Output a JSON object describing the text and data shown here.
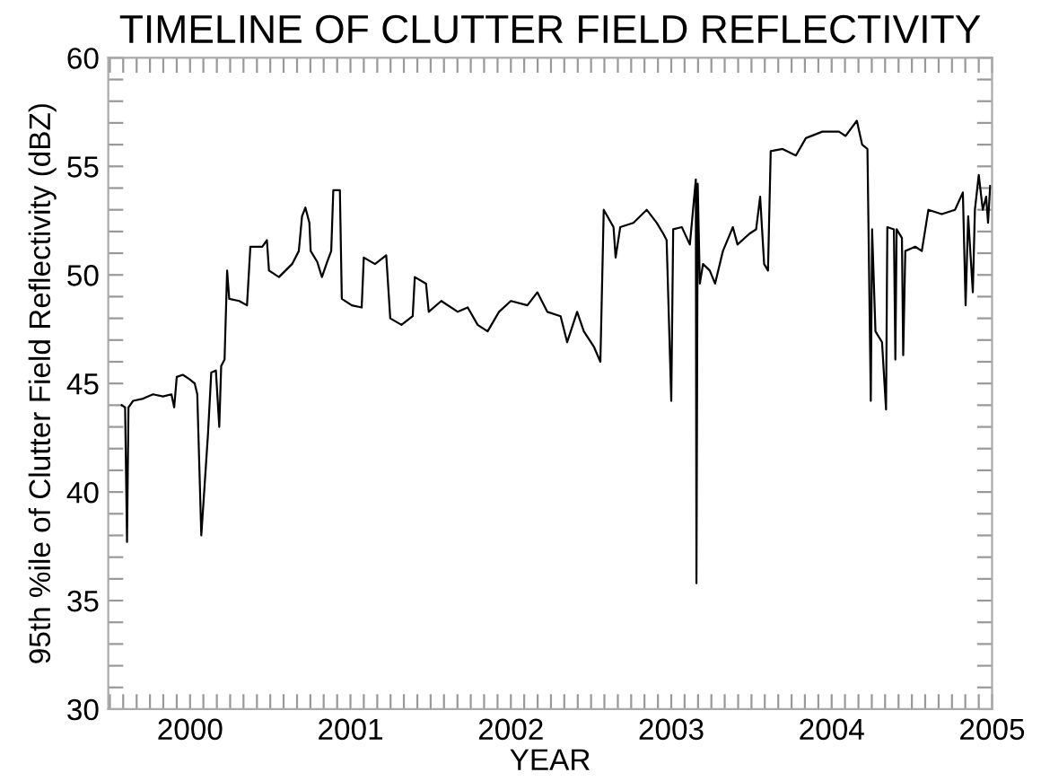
{
  "chart_data": {
    "type": "line",
    "title": "TIMELINE OF CLUTTER FIELD REFLECTIVITY",
    "xlabel": "YEAR",
    "ylabel": "95th %ile of Clutter Field Reflectivity (dBZ)",
    "xlim": [
      1999.49,
      2005
    ],
    "ylim": [
      30,
      60
    ],
    "xticks": [
      {
        "value": 1999.5,
        "label": null
      },
      {
        "value": 1999.583,
        "label": null
      },
      {
        "value": 1999.667,
        "label": null
      },
      {
        "value": 1999.75,
        "label": null
      },
      {
        "value": 1999.833,
        "label": null
      },
      {
        "value": 1999.917,
        "label": null
      },
      {
        "value": 2000,
        "label": "2000"
      },
      {
        "value": 2000.083,
        "label": null
      },
      {
        "value": 2000.167,
        "label": null
      },
      {
        "value": 2000.25,
        "label": null
      },
      {
        "value": 2000.333,
        "label": null
      },
      {
        "value": 2000.417,
        "label": null
      },
      {
        "value": 2000.5,
        "label": null
      },
      {
        "value": 2000.583,
        "label": null
      },
      {
        "value": 2000.667,
        "label": null
      },
      {
        "value": 2000.75,
        "label": null
      },
      {
        "value": 2000.833,
        "label": null
      },
      {
        "value": 2000.917,
        "label": null
      },
      {
        "value": 2001,
        "label": "2001"
      },
      {
        "value": 2001.083,
        "label": null
      },
      {
        "value": 2001.167,
        "label": null
      },
      {
        "value": 2001.25,
        "label": null
      },
      {
        "value": 2001.333,
        "label": null
      },
      {
        "value": 2001.417,
        "label": null
      },
      {
        "value": 2001.5,
        "label": null
      },
      {
        "value": 2001.583,
        "label": null
      },
      {
        "value": 2001.667,
        "label": null
      },
      {
        "value": 2001.75,
        "label": null
      },
      {
        "value": 2001.833,
        "label": null
      },
      {
        "value": 2001.917,
        "label": null
      },
      {
        "value": 2002,
        "label": "2002"
      },
      {
        "value": 2002.083,
        "label": null
      },
      {
        "value": 2002.167,
        "label": null
      },
      {
        "value": 2002.25,
        "label": null
      },
      {
        "value": 2002.333,
        "label": null
      },
      {
        "value": 2002.417,
        "label": null
      },
      {
        "value": 2002.5,
        "label": null
      },
      {
        "value": 2002.583,
        "label": null
      },
      {
        "value": 2002.667,
        "label": null
      },
      {
        "value": 2002.75,
        "label": null
      },
      {
        "value": 2002.833,
        "label": null
      },
      {
        "value": 2002.917,
        "label": null
      },
      {
        "value": 2003,
        "label": "2003"
      },
      {
        "value": 2003.083,
        "label": null
      },
      {
        "value": 2003.167,
        "label": null
      },
      {
        "value": 2003.25,
        "label": null
      },
      {
        "value": 2003.333,
        "label": null
      },
      {
        "value": 2003.417,
        "label": null
      },
      {
        "value": 2003.5,
        "label": null
      },
      {
        "value": 2003.583,
        "label": null
      },
      {
        "value": 2003.667,
        "label": null
      },
      {
        "value": 2003.75,
        "label": null
      },
      {
        "value": 2003.833,
        "label": null
      },
      {
        "value": 2003.917,
        "label": null
      },
      {
        "value": 2004,
        "label": "2004"
      },
      {
        "value": 2004.083,
        "label": null
      },
      {
        "value": 2004.167,
        "label": null
      },
      {
        "value": 2004.25,
        "label": null
      },
      {
        "value": 2004.333,
        "label": null
      },
      {
        "value": 2004.417,
        "label": null
      },
      {
        "value": 2004.5,
        "label": null
      },
      {
        "value": 2004.583,
        "label": null
      },
      {
        "value": 2004.667,
        "label": null
      },
      {
        "value": 2004.75,
        "label": null
      },
      {
        "value": 2004.833,
        "label": null
      },
      {
        "value": 2004.917,
        "label": null
      },
      {
        "value": 2005,
        "label": "2005"
      }
    ],
    "yticks": [
      30,
      {
        "value": 31,
        "label": null
      },
      {
        "value": 32,
        "label": null
      },
      {
        "value": 33,
        "label": null
      },
      {
        "value": 34,
        "label": null
      },
      35,
      {
        "value": 36,
        "label": null
      },
      {
        "value": 37,
        "label": null
      },
      {
        "value": 38,
        "label": null
      },
      {
        "value": 39,
        "label": null
      },
      40,
      {
        "value": 41,
        "label": null
      },
      {
        "value": 42,
        "label": null
      },
      {
        "value": 43,
        "label": null
      },
      {
        "value": 44,
        "label": null
      },
      45,
      {
        "value": 46,
        "label": null
      },
      {
        "value": 47,
        "label": null
      },
      {
        "value": 48,
        "label": null
      },
      {
        "value": 49,
        "label": null
      },
      50,
      {
        "value": 51,
        "label": null
      },
      {
        "value": 52,
        "label": null
      },
      {
        "value": 53,
        "label": null
      },
      {
        "value": 54,
        "label": null
      },
      55,
      {
        "value": 56,
        "label": null
      },
      {
        "value": 57,
        "label": null
      },
      {
        "value": 58,
        "label": null
      },
      {
        "value": 59,
        "label": null
      },
      60
    ],
    "grid": false,
    "legend": false,
    "marker": "none",
    "line_style": "solid",
    "series": [
      {
        "color": "#000000",
        "x": [
          1999.574,
          1999.595,
          1999.607,
          1999.616,
          1999.645,
          1999.707,
          1999.769,
          1999.831,
          1999.884,
          1999.901,
          1999.917,
          1999.955,
          1999.996,
          2000.029,
          2000.045,
          2000.07,
          2000.112,
          2000.132,
          2000.161,
          2000.182,
          2000.194,
          2000.215,
          2000.231,
          2000.244,
          2000.306,
          2000.355,
          2000.376,
          2000.45,
          2000.479,
          2000.492,
          2000.554,
          2000.636,
          2000.678,
          2000.698,
          2000.719,
          2000.744,
          2000.752,
          2000.793,
          2000.822,
          2000.855,
          2000.88,
          2000.893,
          2000.934,
          2000.946,
          2001.008,
          2001.07,
          2001.083,
          2001.153,
          2001.223,
          2001.248,
          2001.318,
          2001.388,
          2001.401,
          2001.471,
          2001.488,
          2001.566,
          2001.669,
          2001.731,
          2001.793,
          2001.855,
          2001.926,
          2002.0,
          2002.103,
          2002.165,
          2002.227,
          2002.31,
          2002.351,
          2002.413,
          2002.455,
          2002.517,
          2002.558,
          2002.579,
          2002.64,
          2002.653,
          2002.682,
          2002.764,
          2002.847,
          2002.909,
          2002.95,
          2002.971,
          2003.0,
          2003.012,
          2003.066,
          2003.116,
          2003.153,
          2003.157,
          2003.165,
          2003.178,
          2003.198,
          2003.24,
          2003.273,
          2003.322,
          2003.384,
          2003.413,
          2003.488,
          2003.529,
          2003.554,
          2003.579,
          2003.603,
          2003.62,
          2003.694,
          2003.777,
          2003.839,
          2003.942,
          2004.045,
          2004.087,
          2004.157,
          2004.19,
          2004.223,
          2004.244,
          2004.252,
          2004.273,
          2004.314,
          2004.339,
          2004.347,
          2004.388,
          2004.397,
          2004.405,
          2004.438,
          2004.446,
          2004.459,
          2004.521,
          2004.562,
          2004.603,
          2004.686,
          2004.769,
          2004.818,
          2004.835,
          2004.851,
          2004.88,
          2004.893,
          2004.917,
          2004.942,
          2004.963,
          2004.975,
          2004.988
        ],
        "values": [
          44.0,
          43.9,
          37.7,
          43.9,
          44.2,
          44.3,
          44.5,
          44.4,
          44.5,
          43.9,
          45.3,
          45.4,
          45.2,
          45.0,
          44.5,
          38.0,
          42.7,
          45.5,
          45.6,
          43.0,
          45.8,
          46.1,
          50.2,
          48.9,
          48.8,
          48.6,
          51.3,
          51.3,
          51.6,
          50.2,
          49.9,
          50.5,
          51.1,
          52.7,
          53.1,
          52.4,
          51.1,
          50.6,
          49.9,
          50.6,
          51.1,
          53.9,
          53.9,
          48.9,
          48.6,
          48.5,
          50.8,
          50.5,
          50.9,
          48.0,
          47.7,
          48.1,
          49.9,
          49.6,
          48.3,
          48.8,
          48.3,
          48.5,
          47.7,
          47.4,
          48.3,
          48.8,
          48.6,
          49.2,
          48.3,
          48.1,
          46.9,
          48.3,
          47.4,
          46.7,
          46.0,
          53.0,
          52.2,
          50.8,
          52.2,
          52.4,
          53.0,
          52.4,
          51.9,
          51.6,
          44.2,
          52.1,
          52.2,
          51.4,
          54.4,
          35.8,
          54.2,
          49.6,
          50.5,
          50.2,
          49.6,
          51.1,
          52.2,
          51.4,
          51.9,
          52.1,
          53.6,
          50.5,
          50.2,
          55.7,
          55.8,
          55.5,
          56.3,
          56.6,
          56.6,
          56.4,
          57.1,
          56.0,
          55.8,
          44.2,
          52.1,
          47.4,
          46.9,
          43.8,
          52.2,
          52.1,
          46.1,
          52.1,
          51.7,
          46.3,
          51.1,
          51.3,
          51.1,
          53.0,
          52.8,
          53.0,
          53.8,
          48.6,
          52.7,
          49.2,
          53.0,
          54.6,
          53.0,
          53.6,
          52.4,
          54.1
        ]
      }
    ]
  }
}
